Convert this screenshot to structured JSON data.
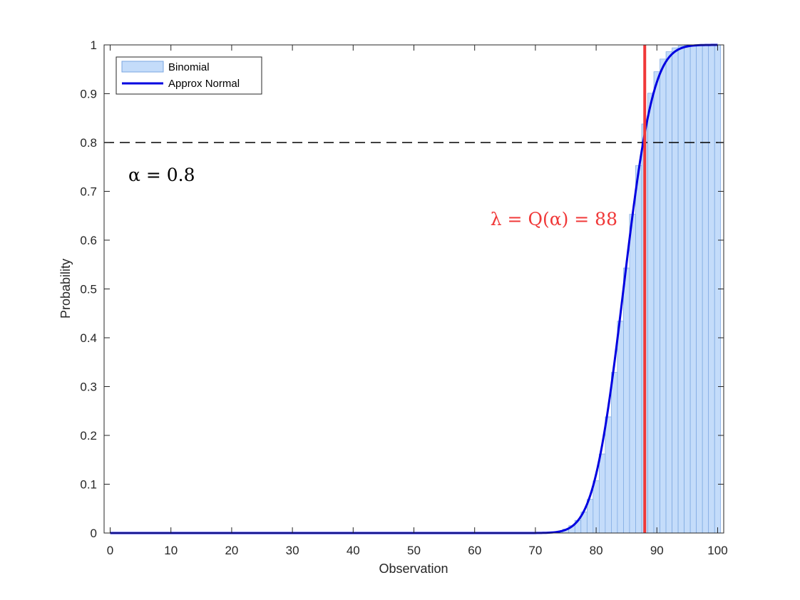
{
  "chart_data": {
    "type": "bar",
    "xlabel": "Observation",
    "ylabel": "Probability",
    "xlim": [
      -1,
      101
    ],
    "ylim": [
      0,
      1
    ],
    "xticks": [
      "0",
      "10",
      "20",
      "30",
      "40",
      "50",
      "60",
      "70",
      "80",
      "90",
      "100"
    ],
    "yticks": [
      "0",
      "0.1",
      "0.2",
      "0.3",
      "0.4",
      "0.5",
      "0.6",
      "0.7",
      "0.8",
      "0.9",
      "1"
    ],
    "grid": false,
    "legend_position": "top-left",
    "series": [
      {
        "name": "Binomial",
        "kind": "bar",
        "color": "#c4dcfa",
        "edge_color": "#7aa6e0",
        "x": [
          74,
          75,
          76,
          77,
          78,
          79,
          80,
          81,
          82,
          83,
          84,
          85,
          86,
          87,
          88,
          89,
          90,
          91,
          92,
          93,
          94,
          95,
          96,
          97,
          98,
          99,
          100
        ],
        "values": [
          0.004,
          0.008,
          0.015,
          0.026,
          0.043,
          0.069,
          0.107,
          0.162,
          0.238,
          0.329,
          0.434,
          0.543,
          0.653,
          0.753,
          0.838,
          0.901,
          0.945,
          0.971,
          0.986,
          0.994,
          0.998,
          0.999,
          1.0,
          1.0,
          1.0,
          1.0,
          1.0
        ]
      },
      {
        "name": "Approx Normal",
        "kind": "line",
        "color": "#0000e0",
        "mean": 84.5,
        "std": 3.84
      }
    ],
    "annotations": {
      "threshold_value": 0.8,
      "threshold_style": "dashed",
      "threshold_color": "#000000",
      "quantile_value": 88,
      "quantile_color": "#f03838",
      "alpha_label": "α = 0.8",
      "lambda_label": "λ = Q(α) = 88"
    }
  }
}
